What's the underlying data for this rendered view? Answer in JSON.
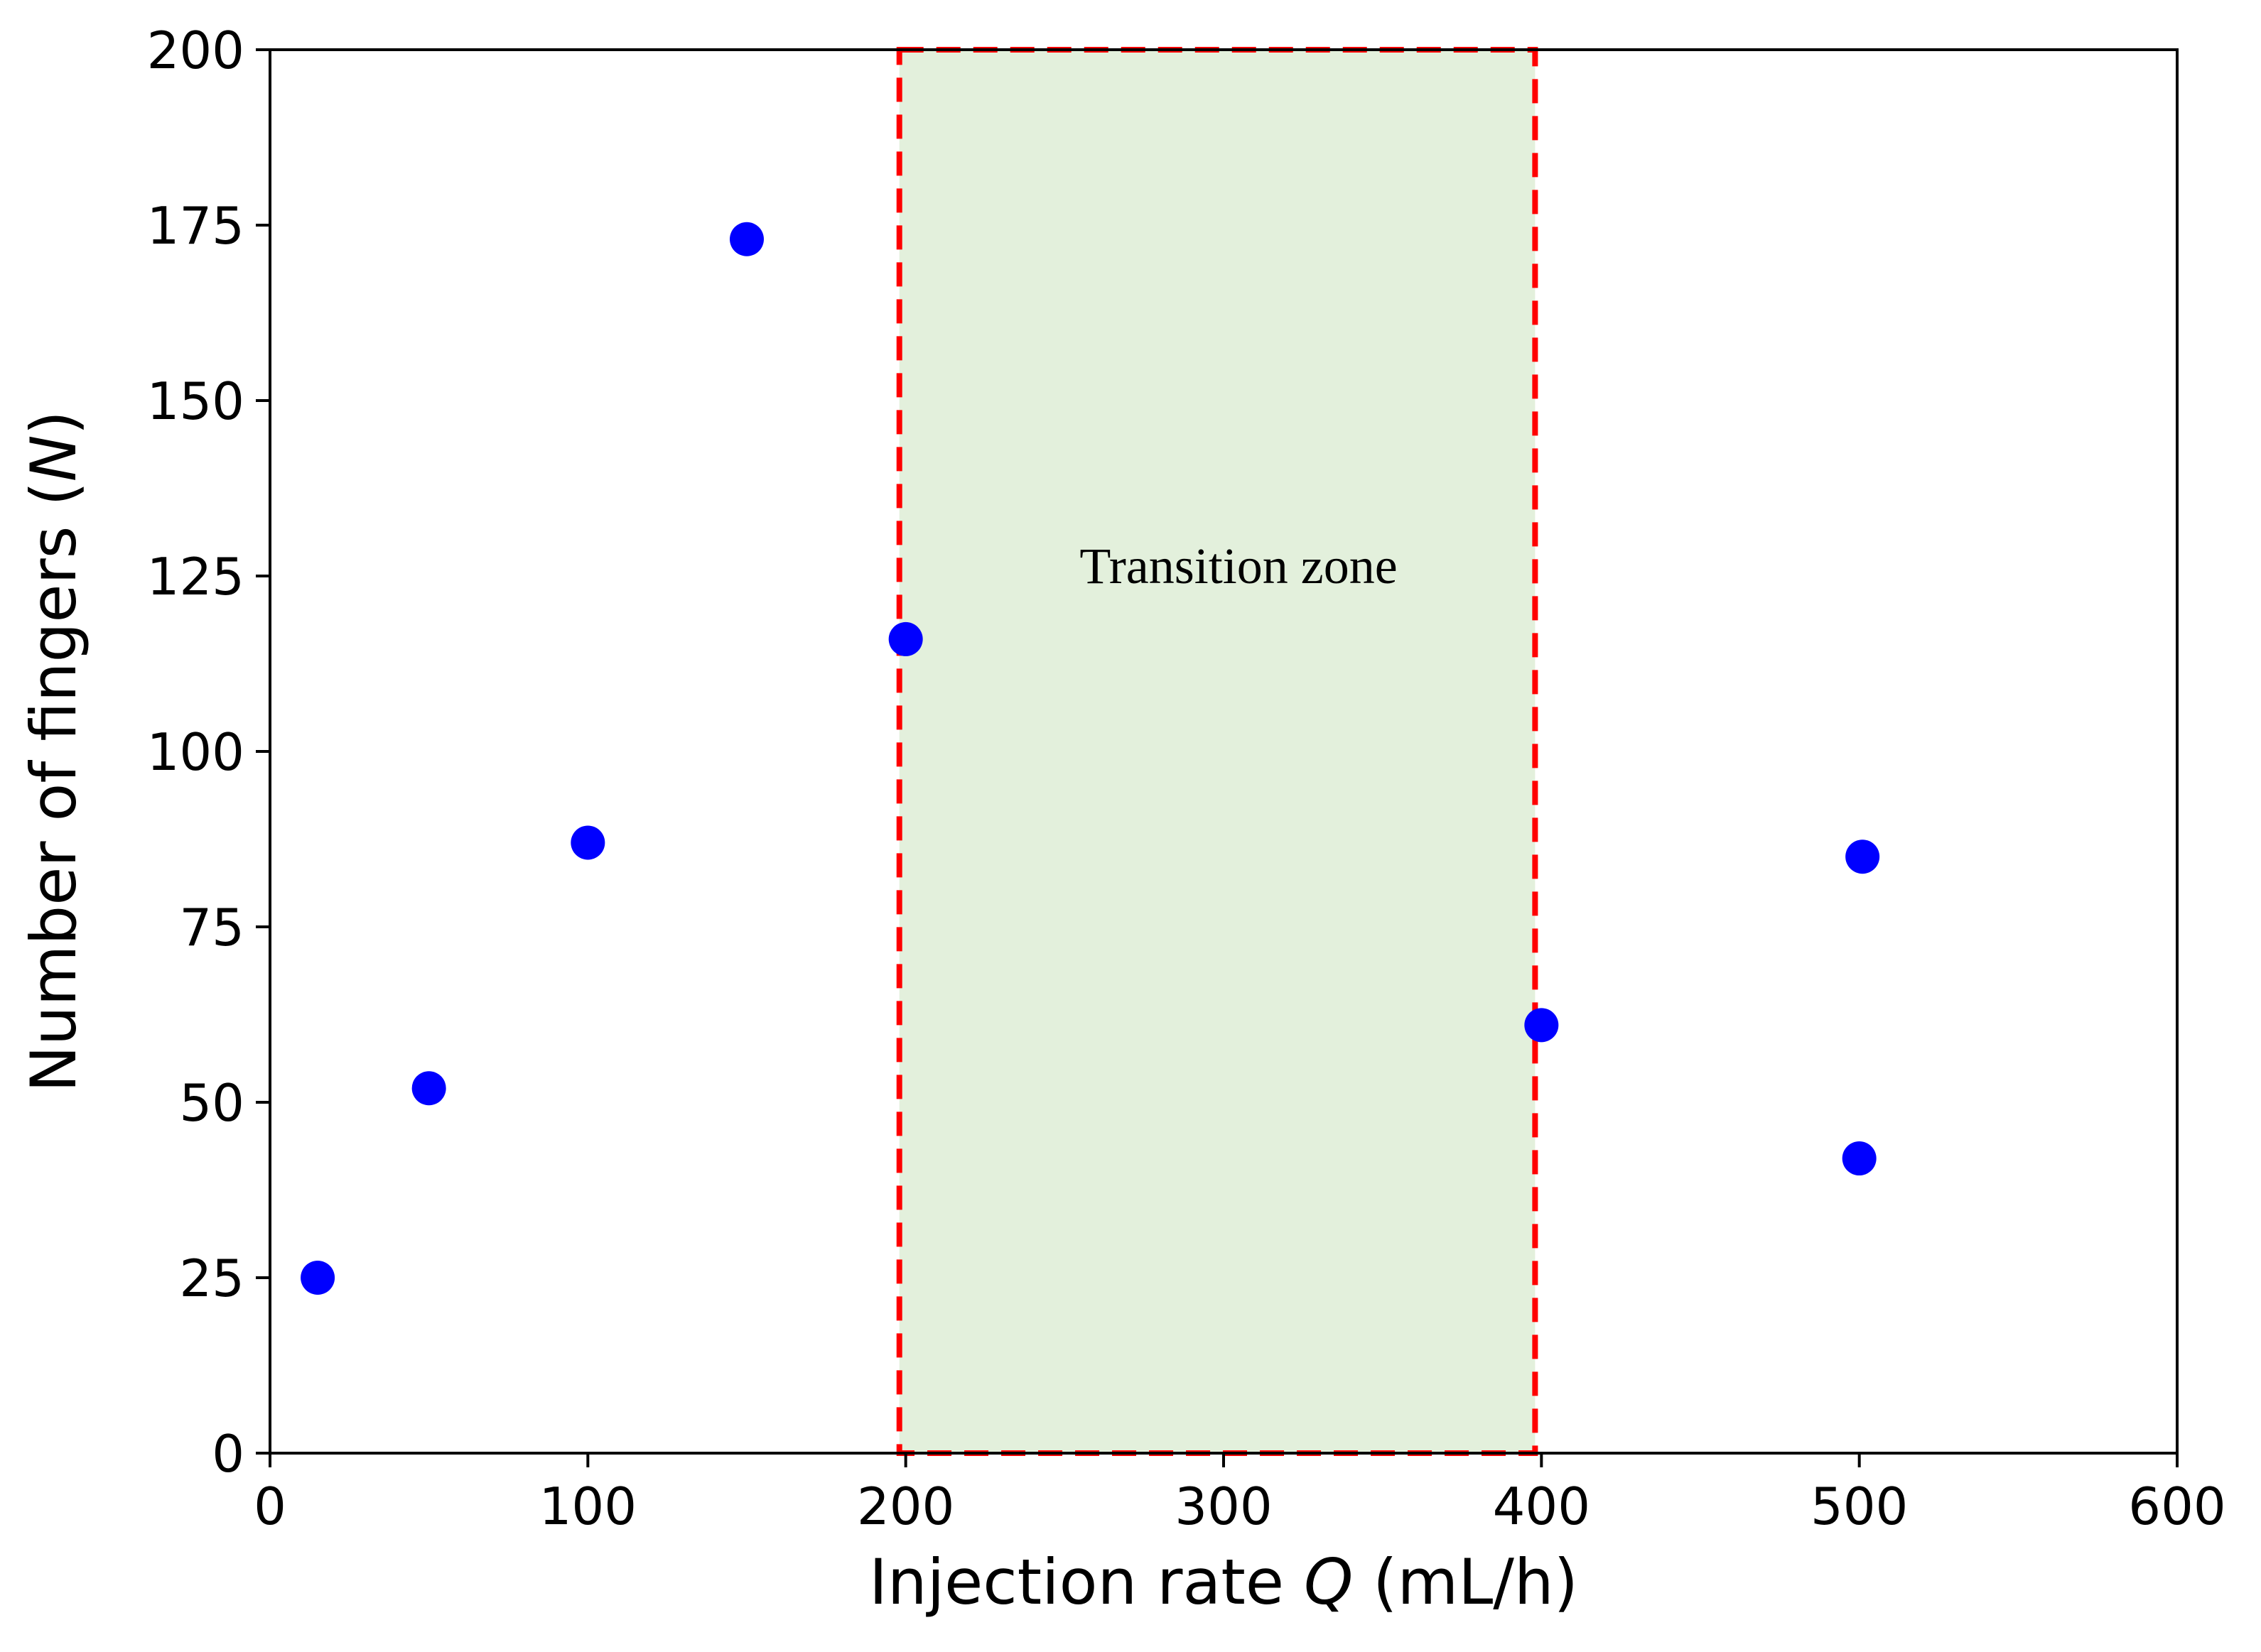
{
  "chart_data": {
    "type": "scatter",
    "title": "",
    "xlabel": {
      "prefix": "Injection rate ",
      "symbol": "Q",
      "suffix": " (mL/h)"
    },
    "ylabel": {
      "prefix": "Number of fingers (",
      "symbol": "N",
      "suffix": ")"
    },
    "xlim": [
      0,
      600
    ],
    "ylim": [
      0,
      200
    ],
    "xticks": [
      0,
      100,
      200,
      300,
      400,
      500,
      600
    ],
    "yticks": [
      0,
      25,
      50,
      75,
      100,
      125,
      150,
      175,
      200
    ],
    "grid": false,
    "series": [
      {
        "name": "Number of fingers",
        "color": "#0000ff",
        "points": [
          {
            "x": 15,
            "y": 25
          },
          {
            "x": 50,
            "y": 52
          },
          {
            "x": 100,
            "y": 87
          },
          {
            "x": 150,
            "y": 173
          },
          {
            "x": 200,
            "y": 116
          },
          {
            "x": 400,
            "y": 61
          },
          {
            "x": 500,
            "y": 42
          },
          {
            "x": 501,
            "y": 85
          }
        ]
      }
    ],
    "shaded_region": {
      "label": "Transition zone",
      "x_range": [
        198,
        398
      ],
      "y_range": [
        0,
        200
      ],
      "fill_color": "#e3f0dc",
      "border_color": "#ff0000"
    }
  }
}
